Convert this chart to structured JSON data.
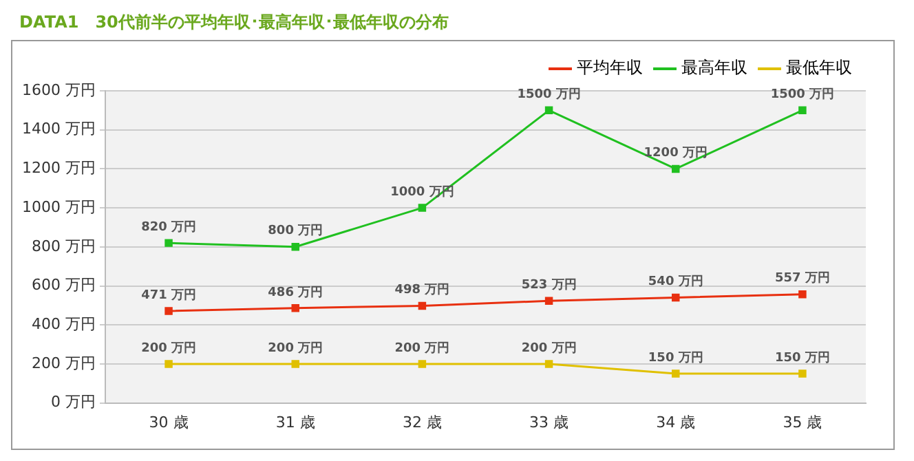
{
  "chart_data": {
    "type": "line",
    "title": "DATA1　30代前半の平均年収･最高年収･最低年収の分布",
    "categories": [
      "30 歳",
      "31 歳",
      "32 歳",
      "33 歳",
      "34 歳",
      "35 歳"
    ],
    "series": [
      {
        "name": "平均年収",
        "color": "#e83010",
        "values": [
          471,
          486,
          498,
          523,
          540,
          557
        ],
        "value_labels": [
          "471 万円",
          "486 万円",
          "498 万円",
          "523 万円",
          "540 万円",
          "557 万円"
        ]
      },
      {
        "name": "最高年収",
        "color": "#20c020",
        "values": [
          820,
          800,
          1000,
          1500,
          1200,
          1500
        ],
        "value_labels": [
          "820 万円",
          "800 万円",
          "1000 万円",
          "1500 万円",
          "1200 万円",
          "1500 万円"
        ]
      },
      {
        "name": "最低年収",
        "color": "#e0c000",
        "values": [
          200,
          200,
          200,
          200,
          150,
          150
        ],
        "value_labels": [
          "200 万円",
          "200 万円",
          "200 万円",
          "200 万円",
          "150 万円",
          "150 万円"
        ]
      }
    ],
    "ylim": [
      0,
      1600
    ],
    "yticks": [
      {
        "value": 0,
        "label": "0 万円"
      },
      {
        "value": 200,
        "label": "200 万円"
      },
      {
        "value": 400,
        "label": "400 万円"
      },
      {
        "value": 600,
        "label": "600 万円"
      },
      {
        "value": 800,
        "label": "800 万円"
      },
      {
        "value": 1000,
        "label": "1000 万円"
      },
      {
        "value": 1200,
        "label": "1200 万円"
      },
      {
        "value": 1400,
        "label": "1400 万円"
      },
      {
        "value": 1600,
        "label": "1600 万円"
      }
    ],
    "grid": "y",
    "legend": "top right",
    "marker": "square",
    "line_style": "solid"
  }
}
